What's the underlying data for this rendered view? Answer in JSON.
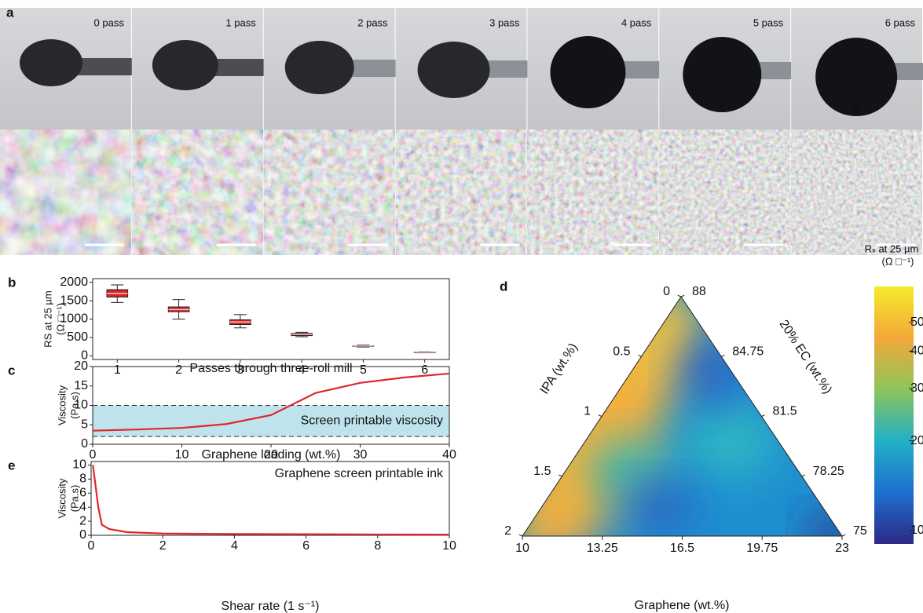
{
  "figure_a": {
    "label": "a",
    "photos": [
      "0 pass",
      "1 pass",
      "2 pass",
      "3 pass",
      "4 pass",
      "5 pass",
      "6 pass"
    ]
  },
  "chart_data": [
    {
      "type": "box",
      "label": "b",
      "ylabel": [
        "RS at 25 µm",
        "(Ω □⁻¹)"
      ],
      "xlabel": "Passes through three-roll mill",
      "x": [
        1,
        2,
        3,
        4,
        5,
        6
      ],
      "min": [
        1450,
        1000,
        760,
        520,
        240,
        90
      ],
      "q1": [
        1600,
        1200,
        850,
        550,
        255,
        95
      ],
      "median": [
        1700,
        1260,
        920,
        580,
        265,
        100
      ],
      "q3": [
        1800,
        1330,
        980,
        610,
        275,
        105
      ],
      "max": [
        1930,
        1530,
        1120,
        640,
        290,
        110
      ],
      "color": "#d9232a",
      "xlim": [
        0.6,
        6.4
      ],
      "xticks": [
        1,
        2,
        3,
        4,
        5,
        6
      ],
      "ylim": [
        -100,
        2100
      ],
      "yticks": [
        0,
        500,
        1000,
        1500,
        2000
      ]
    },
    {
      "type": "line",
      "label": "c",
      "ylabel": [
        "Viscosity",
        "(Pa.s)"
      ],
      "xlabel": "Graphene loading (wt.%)",
      "x": [
        0,
        5,
        10,
        15,
        20,
        25,
        30,
        35,
        40
      ],
      "values": [
        3.5,
        3.8,
        4.2,
        5.2,
        7.5,
        13.2,
        15.8,
        17.2,
        18.2
      ],
      "color": "#e0262b",
      "band": [
        2,
        10
      ],
      "band_color": "#bfe3ec",
      "annotation": "Screen printable viscosity",
      "xlim": [
        0,
        40
      ],
      "xticks": [
        0,
        10,
        20,
        30,
        40
      ],
      "ylim": [
        0,
        20
      ],
      "yticks": [
        0,
        5,
        10,
        15,
        20
      ]
    },
    {
      "type": "line",
      "label": "e",
      "ylabel": [
        "Viscosity",
        "(Pa.s)"
      ],
      "xlabel": "Shear rate (1 s⁻¹)",
      "x": [
        0.05,
        0.1,
        0.2,
        0.3,
        0.5,
        1,
        2,
        4,
        6,
        8,
        10
      ],
      "values": [
        10,
        8,
        4,
        1.5,
        0.9,
        0.45,
        0.25,
        0.18,
        0.15,
        0.12,
        0.1
      ],
      "color": "#e0262b",
      "annotation": "Graphene screen printable ink",
      "xlim": [
        0,
        10
      ],
      "xticks": [
        0,
        2,
        4,
        6,
        8,
        10
      ],
      "ylim": [
        0,
        10.5
      ],
      "yticks": [
        0,
        2,
        4,
        6,
        8,
        10
      ]
    },
    {
      "type": "ternary",
      "label": "d",
      "left_axis": {
        "label": "IPA (wt.%)",
        "lim": [
          0,
          2
        ],
        "ticks": [
          0,
          0.5,
          1,
          1.5,
          2
        ]
      },
      "right_axis": {
        "label": "20% EC (wt.%)",
        "lim": [
          88,
          75
        ],
        "ticks": [
          88,
          84.75,
          81.5,
          78.25,
          75
        ]
      },
      "bottom_axis": {
        "label": "Graphene (wt.%)",
        "lim": [
          10,
          23
        ],
        "ticks": [
          10,
          13.25,
          16.5,
          19.75,
          23
        ]
      },
      "colorbar": {
        "title": [
          "Rₛ at 25 µm",
          "(Ω □⁻¹)"
        ],
        "scale": "log",
        "lim": [
          9,
          66
        ],
        "ticks": [
          50,
          40,
          30,
          20,
          10
        ],
        "colors": [
          "#2b2a85",
          "#1e6fd0",
          "#22b0c6",
          "#8cc55a",
          "#f4a83a",
          "#f5ea2a"
        ]
      }
    }
  ]
}
